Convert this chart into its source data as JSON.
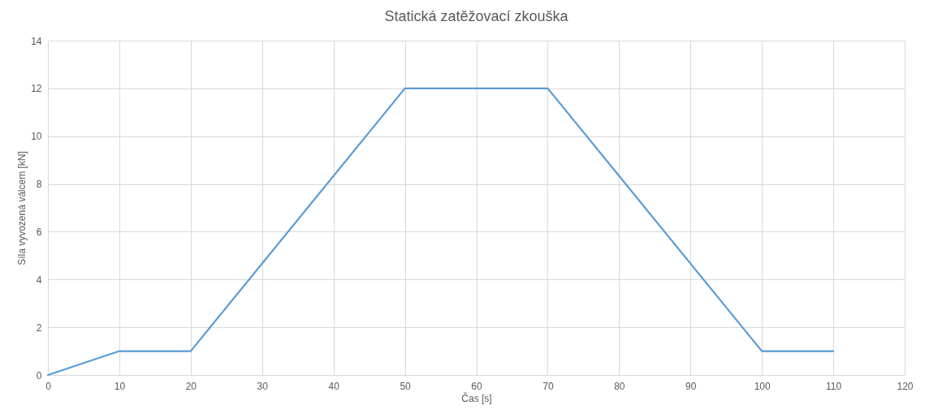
{
  "chart_data": {
    "type": "line",
    "title": "Statická zatěžovací zkouška",
    "xlabel": "Čas [s]",
    "ylabel": "Síla vyvozená válcem [kN]",
    "x": [
      0,
      10,
      20,
      50,
      70,
      100,
      110
    ],
    "series": [
      {
        "color": "#5b9bd5",
        "values": [
          0,
          1,
          1,
          12,
          12,
          1,
          1
        ]
      }
    ],
    "xlim": [
      0,
      120
    ],
    "xticks": [
      0,
      10,
      20,
      30,
      40,
      50,
      60,
      70,
      80,
      90,
      100,
      110,
      120
    ],
    "ylim": [
      0,
      14
    ],
    "yticks": [
      0,
      2,
      4,
      6,
      8,
      10,
      12,
      14
    ],
    "grid": true,
    "marker": "none",
    "line_style": "solid"
  }
}
